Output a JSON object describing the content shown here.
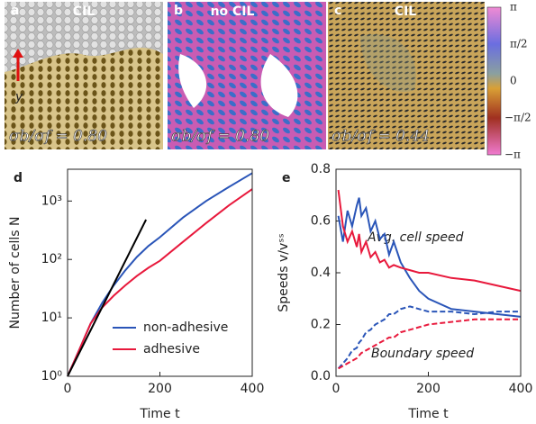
{
  "image_panels": [
    {
      "letter": "a",
      "label": "CIL",
      "ratio": "σb/σf = 0.80",
      "axis": "y"
    },
    {
      "letter": "b",
      "label": "no CIL",
      "ratio": "σb/σf = 0.80"
    },
    {
      "letter": "c",
      "label": "CIL",
      "ratio": "σb/σf = 0.44"
    }
  ],
  "colorbar": {
    "labels": [
      "π",
      "π/2",
      "0",
      "−π/2",
      "−π"
    ]
  },
  "chart_data": [
    {
      "type": "line",
      "letter": "d",
      "xlabel": "Time t",
      "ylabel": "Number of cells N",
      "log_y": true,
      "xlim": [
        0,
        400
      ],
      "ylim": [
        1,
        3500
      ],
      "xticks": [
        0,
        200,
        400
      ],
      "yticks": [
        {
          "value": 1,
          "label": "10⁰"
        },
        {
          "value": 10,
          "label": "10¹"
        },
        {
          "value": 100,
          "label": "10²"
        },
        {
          "value": 1000,
          "label": "10³"
        }
      ],
      "legend": "lower right",
      "series": [
        {
          "name": "non-adhesive",
          "color": "#2a55b8",
          "x": [
            0,
            25,
            50,
            75,
            100,
            125,
            150,
            175,
            200,
            250,
            300,
            350,
            400
          ],
          "values": [
            1,
            2.8,
            8,
            18,
            36,
            65,
            110,
            170,
            240,
            520,
            1000,
            1750,
            3000
          ]
        },
        {
          "name": "adhesive",
          "color": "#e8193c",
          "x": [
            0,
            25,
            50,
            75,
            100,
            125,
            150,
            175,
            200,
            250,
            300,
            350,
            400
          ],
          "values": [
            1,
            2.8,
            8,
            15,
            24,
            36,
            52,
            72,
            95,
            200,
            420,
            850,
            1600
          ]
        },
        {
          "color": "#000000",
          "x": [
            0,
            170
          ],
          "values": [
            1,
            480
          ]
        }
      ]
    },
    {
      "type": "line",
      "letter": "e",
      "xlabel": "Time t",
      "ylabel": "Speeds v/vˢˢ",
      "log_y": false,
      "xlim": [
        0,
        400
      ],
      "ylim": [
        0,
        0.8
      ],
      "xticks": [
        0,
        200,
        400
      ],
      "yticks": [
        {
          "value": 0,
          "label": "0.0"
        },
        0.2,
        0.4,
        0.6,
        0.8
      ],
      "annotations": [
        "Avg. cell speed",
        "Boundary speed"
      ],
      "series": [
        {
          "color": "#2a55b8",
          "dash": false,
          "x": [
            5,
            15,
            25,
            35,
            45,
            50,
            55,
            65,
            75,
            85,
            95,
            105,
            115,
            125,
            140,
            160,
            180,
            200,
            250,
            300,
            350,
            400
          ],
          "values": [
            0.62,
            0.52,
            0.64,
            0.58,
            0.66,
            0.69,
            0.62,
            0.65,
            0.56,
            0.6,
            0.53,
            0.55,
            0.47,
            0.52,
            0.44,
            0.38,
            0.33,
            0.3,
            0.26,
            0.25,
            0.24,
            0.23
          ]
        },
        {
          "color": "#e8193c",
          "dash": false,
          "x": [
            5,
            15,
            25,
            35,
            45,
            50,
            55,
            65,
            75,
            85,
            95,
            105,
            115,
            125,
            140,
            160,
            180,
            200,
            250,
            300,
            350,
            400
          ],
          "values": [
            0.72,
            0.58,
            0.52,
            0.56,
            0.5,
            0.55,
            0.48,
            0.52,
            0.46,
            0.48,
            0.44,
            0.45,
            0.42,
            0.43,
            0.42,
            0.41,
            0.4,
            0.4,
            0.38,
            0.37,
            0.35,
            0.33
          ]
        },
        {
          "color": "#2a55b8",
          "dash": true,
          "x": [
            5,
            15,
            25,
            35,
            45,
            50,
            55,
            65,
            75,
            85,
            95,
            105,
            115,
            125,
            140,
            160,
            180,
            200,
            250,
            300,
            350,
            400
          ],
          "values": [
            0.03,
            0.05,
            0.07,
            0.1,
            0.11,
            0.13,
            0.14,
            0.17,
            0.18,
            0.2,
            0.21,
            0.22,
            0.24,
            0.24,
            0.26,
            0.27,
            0.26,
            0.25,
            0.25,
            0.24,
            0.25,
            0.25
          ]
        },
        {
          "color": "#e8193c",
          "dash": true,
          "x": [
            5,
            15,
            25,
            35,
            45,
            50,
            55,
            65,
            75,
            85,
            95,
            105,
            115,
            125,
            140,
            160,
            180,
            200,
            250,
            300,
            350,
            400
          ],
          "values": [
            0.03,
            0.04,
            0.05,
            0.06,
            0.07,
            0.08,
            0.09,
            0.1,
            0.11,
            0.12,
            0.13,
            0.14,
            0.15,
            0.15,
            0.17,
            0.18,
            0.19,
            0.2,
            0.21,
            0.22,
            0.22,
            0.22
          ]
        }
      ]
    }
  ]
}
